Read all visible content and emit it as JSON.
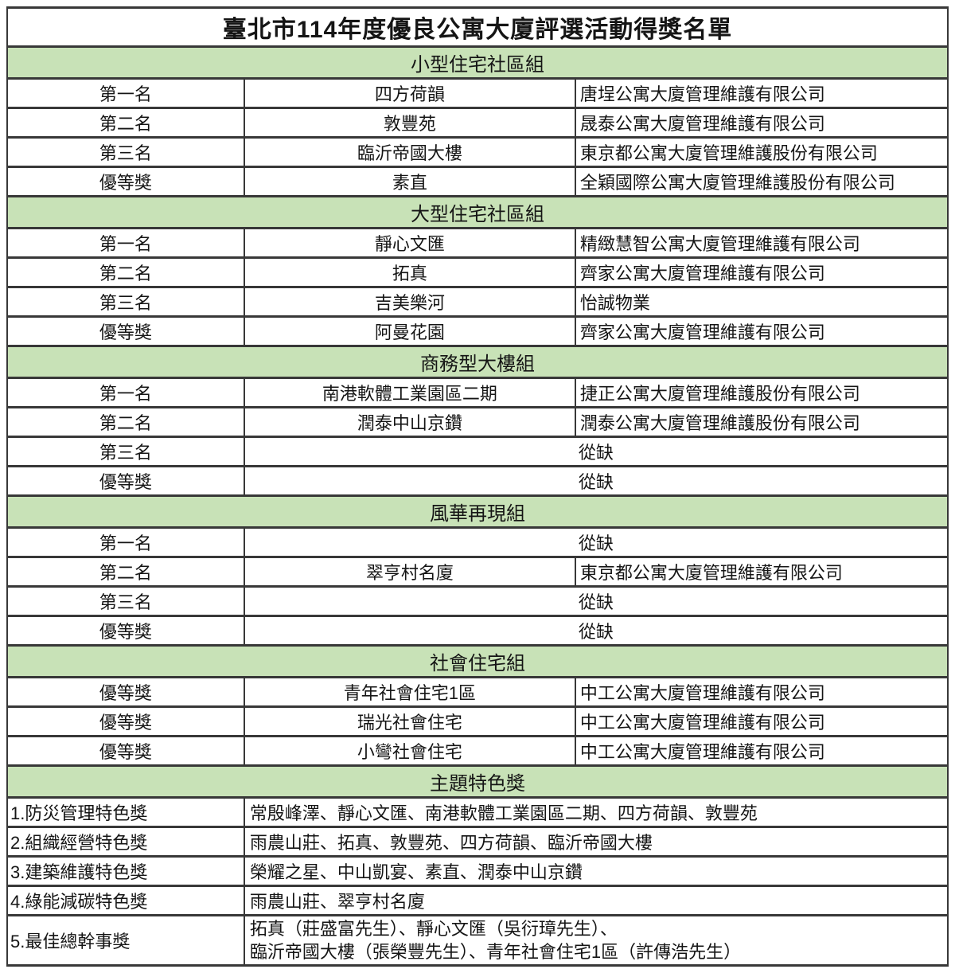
{
  "title": "臺北市114年度優良公寓大廈評選活動得獎名單",
  "colors": {
    "section_header_bg": "#c8e2b7",
    "border": "#383838",
    "text": "#151515"
  },
  "vacant_label": "從缺",
  "sections": [
    {
      "name": "小型住宅社區組",
      "rows": [
        {
          "rank": "第一名",
          "building": "四方荷韻",
          "company": "唐埕公寓大廈管理維護有限公司"
        },
        {
          "rank": "第二名",
          "building": "敦豐苑",
          "company": "晟泰公寓大廈管理維護有限公司"
        },
        {
          "rank": "第三名",
          "building": "臨沂帝國大樓",
          "company": "東京都公寓大廈管理維護股份有限公司"
        },
        {
          "rank": "優等獎",
          "building": "素直",
          "company": "全穎國際公寓大廈管理維護股份有限公司"
        }
      ]
    },
    {
      "name": "大型住宅社區組",
      "rows": [
        {
          "rank": "第一名",
          "building": "靜心文匯",
          "company": "精緻慧智公寓大廈管理維護有限公司"
        },
        {
          "rank": "第二名",
          "building": "拓真",
          "company": "齊家公寓大廈管理維護有限公司"
        },
        {
          "rank": "第三名",
          "building": "吉美樂河",
          "company": "怡誠物業"
        },
        {
          "rank": "優等獎",
          "building": "阿曼花園",
          "company": "齊家公寓大廈管理維護有限公司"
        }
      ]
    },
    {
      "name": "商務型大樓組",
      "rows": [
        {
          "rank": "第一名",
          "building": "南港軟體工業園區二期",
          "company": "捷正公寓大廈管理維護股份有限公司"
        },
        {
          "rank": "第二名",
          "building": "潤泰中山京鑽",
          "company": "潤泰公寓大廈管理維護股份有限公司"
        },
        {
          "rank": "第三名",
          "merged_text": "從缺"
        },
        {
          "rank": "優等獎",
          "merged_text": "從缺"
        }
      ]
    },
    {
      "name": "風華再現組",
      "rows": [
        {
          "rank": "第一名",
          "merged_text": "從缺"
        },
        {
          "rank": "第二名",
          "building": "翠亨村名廈",
          "company": "東京都公寓大廈管理維護有限公司"
        },
        {
          "rank": "第三名",
          "merged_text": "從缺"
        },
        {
          "rank": "優等獎",
          "merged_text": "從缺"
        }
      ]
    },
    {
      "name": "社會住宅組",
      "rows": [
        {
          "rank": "優等獎",
          "building": "青年社會住宅1區",
          "company": "中工公寓大廈管理維護有限公司"
        },
        {
          "rank": "優等獎",
          "building": "瑞光社會住宅",
          "company": "中工公寓大廈管理維護有限公司"
        },
        {
          "rank": "優等獎",
          "building": "小彎社會住宅",
          "company": "中工公寓大廈管理維護有限公司"
        }
      ]
    }
  ],
  "special_awards": {
    "name": "主題特色獎",
    "rows": [
      {
        "label": "1.防災管理特色獎",
        "winners": "常殷峰澤、靜心文匯、南港軟體工業園區二期、四方荷韻、敦豐苑"
      },
      {
        "label": "2.組織經營特色獎",
        "winners": "雨農山莊、拓真、敦豐苑、四方荷韻、臨沂帝國大樓"
      },
      {
        "label": "3.建築維護特色獎",
        "winners": "榮耀之星、中山凱宴、素直、潤泰中山京鑽"
      },
      {
        "label": "4.綠能減碳特色獎",
        "winners": "雨農山莊、翠亨村名廈"
      },
      {
        "label": "5.最佳總幹事獎",
        "winners_lines": [
          "拓真（莊盛富先生）、靜心文匯（吳衍璋先生）、",
          "臨沂帝國大樓（張榮豐先生）、青年社會住宅1區（許傳浩先生）"
        ]
      }
    ]
  }
}
